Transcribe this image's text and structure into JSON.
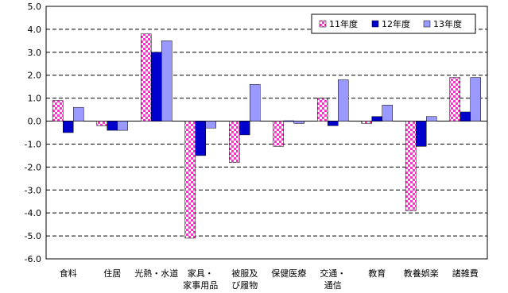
{
  "chart_data": {
    "type": "bar",
    "categories": [
      [
        "食料"
      ],
      [
        "住居"
      ],
      [
        "光熱・水道"
      ],
      [
        "家具・",
        "家事用品"
      ],
      [
        "被服及",
        "び履物"
      ],
      [
        "保健医療"
      ],
      [
        "交通・",
        "通信"
      ],
      [
        "教育"
      ],
      [
        "教養娯楽"
      ],
      [
        "諸雑費"
      ]
    ],
    "series": [
      {
        "name": "11年度",
        "values": [
          0.9,
          -0.2,
          3.8,
          -5.1,
          -1.8,
          -1.1,
          1.0,
          -0.1,
          -3.9,
          1.9
        ],
        "color": "#ff33cc",
        "pattern": "checker"
      },
      {
        "name": "12年度",
        "values": [
          -0.5,
          -0.4,
          3.0,
          -1.5,
          -0.6,
          0.0,
          -0.2,
          0.2,
          -1.1,
          0.4
        ],
        "color": "#0000cc"
      },
      {
        "name": "13年度",
        "values": [
          0.6,
          -0.4,
          3.5,
          -0.3,
          1.6,
          -0.1,
          1.8,
          0.7,
          0.2,
          1.9
        ],
        "color": "#9999ff"
      }
    ],
    "ylim": [
      -6.0,
      5.0
    ],
    "yticks": [
      "5.0",
      "4.0",
      "3.0",
      "2.0",
      "1.0",
      "0.0",
      "-1.0",
      "-2.0",
      "-3.0",
      "-4.0",
      "-5.0",
      "-6.0"
    ],
    "grid": true,
    "legend_position": "top-right"
  }
}
